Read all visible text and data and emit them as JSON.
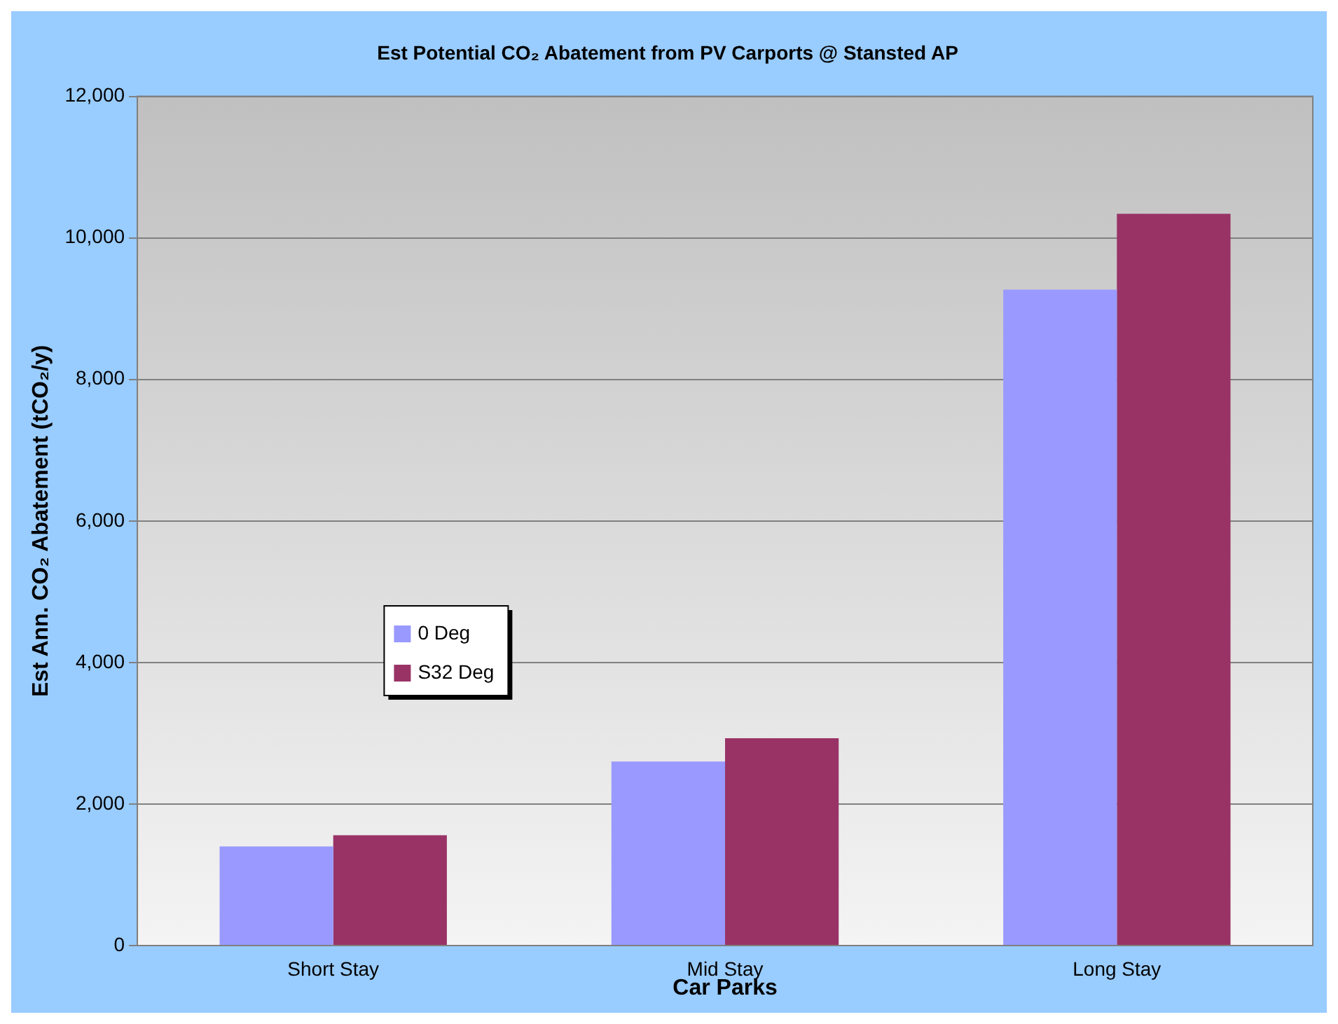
{
  "chart_data": {
    "type": "bar",
    "title": "Est Potential CO₂ Abatement from PV Carports @ Stansted AP",
    "xlabel": "Car Parks",
    "ylabel": "Est Ann. CO₂ Abatement (tCO₂/y)",
    "categories": [
      "Short Stay",
      "Mid Stay",
      "Long Stay"
    ],
    "series": [
      {
        "name": "0 Deg",
        "color": "#9999ff",
        "values": [
          1400,
          2600,
          9270
        ]
      },
      {
        "name": "S32 Deg",
        "color": "#993366",
        "values": [
          1560,
          2930,
          10340
        ]
      }
    ],
    "ylim": [
      0,
      12000
    ],
    "yticks": [
      {
        "value": 0,
        "label": "0"
      },
      {
        "value": 2000,
        "label": "2,000"
      },
      {
        "value": 4000,
        "label": "4,000"
      },
      {
        "value": 6000,
        "label": "6,000"
      },
      {
        "value": 8000,
        "label": "8,000"
      },
      {
        "value": 10000,
        "label": "10,000"
      },
      {
        "value": 12000,
        "label": "12,000"
      }
    ],
    "grid": "y",
    "legend": "left"
  }
}
